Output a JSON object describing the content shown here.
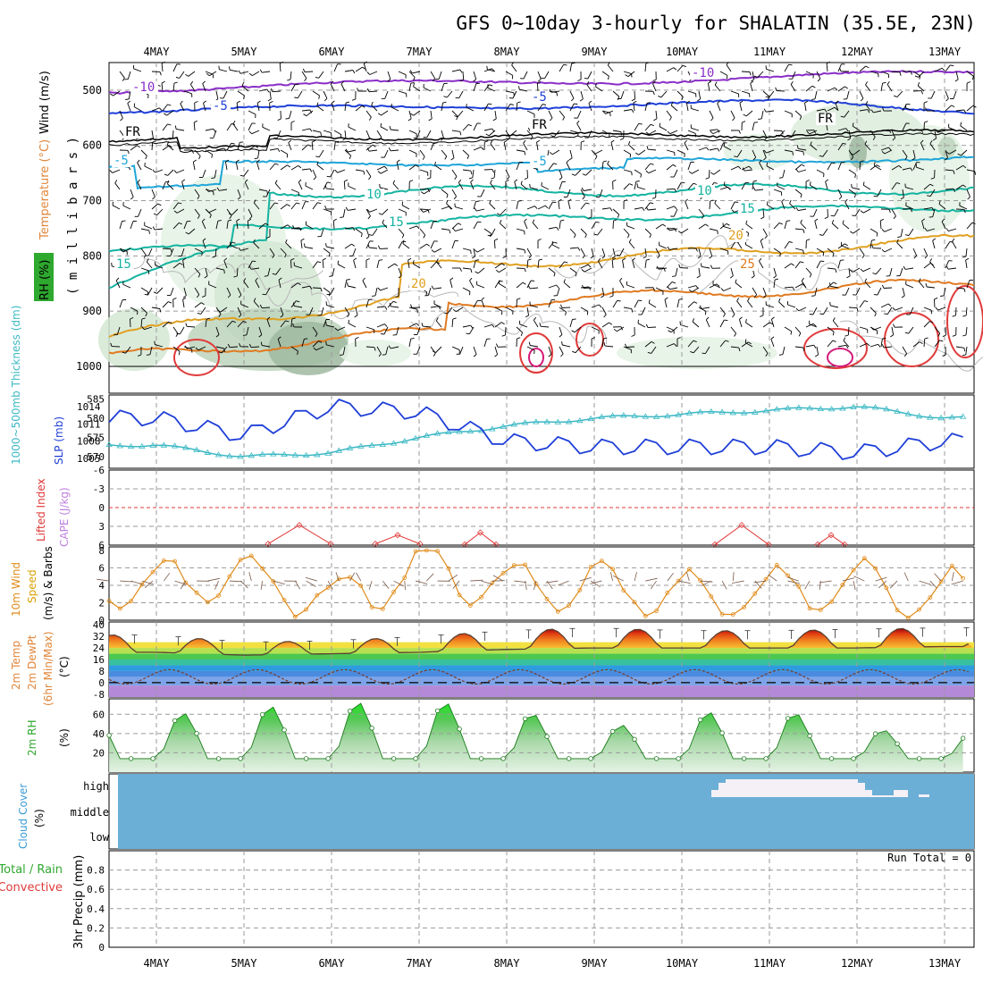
{
  "title": "GFS 0~10day 3-hourly for SHALATIN (35.5E, 23N)",
  "dates": [
    "4MAY",
    "5MAY",
    "6MAY",
    "7MAY",
    "8MAY",
    "9MAY",
    "10MAY",
    "11MAY",
    "12MAY",
    "13MAY"
  ],
  "colors": {
    "temperature_label": "#e0863a",
    "rh_label": "#2ea82e",
    "wind_label": "#000000",
    "thickness": "#3bb8c4",
    "slp": "#1f3fd8",
    "lifted_index": "#e03a3a",
    "cape": "#c080e0",
    "wind10": "#e08b1a",
    "speed": "#d8a000",
    "temp2m": "#e0863a",
    "dewpt": "#2ea82e",
    "rh2m": "#2ea82e",
    "cloud": "#3b9ad4",
    "cloud_fill": "#6baed6",
    "precip_total": "#2ea82e",
    "precip_conv": "#e03a3a"
  },
  "panel1": {
    "ylabel_rh": "RH (%)",
    "ylabel_temp": "Temperature (°C)",
    "ylabel_wind": "Wind (m/s)",
    "ylabel_mb": "( m i l l i b a r s )",
    "y_ticks": [
      "500",
      "600",
      "700",
      "800",
      "900",
      "1000"
    ],
    "contour_labels": [
      "-10",
      "-10",
      "-5",
      "-5",
      "FR",
      "FR",
      "FR",
      "-5",
      "-5",
      "10",
      "10",
      "15",
      "15",
      "15",
      "20",
      "20",
      "25"
    ]
  },
  "panel2": {
    "ylabel_thick": "1000~500mb Thickness (dm)",
    "ylabel_slp": "SLP (mb)",
    "left_ticks": [
      "585",
      "580",
      "575",
      "570"
    ],
    "right_ticks": [
      "1014",
      "1011",
      "1008",
      "1005"
    ]
  },
  "panel3": {
    "ylabel_li": "Lifted Index",
    "ylabel_cape": "CAPE (J/kg)",
    "ticks": [
      "-6",
      "-3",
      "0",
      "3",
      "6"
    ]
  },
  "panel4": {
    "ylabel_wind": "10m Wind",
    "ylabel_speed": "Speed",
    "ylabel_barbs": "(m/s) & Barbs",
    "ticks": [
      "8",
      "6",
      "4",
      "2",
      "0"
    ]
  },
  "panel5": {
    "ylabel_temp": "2m Temp",
    "ylabel_dewpt": "2m DewPt",
    "ylabel_minmax": "(6hr Min/Max)",
    "ylabel_unit": "(°C)",
    "ticks": [
      "40",
      "32",
      "24",
      "16",
      "8",
      "0",
      "-8"
    ]
  },
  "panel6": {
    "ylabel_rh": "2m RH",
    "ylabel_unit": "(%)",
    "ticks": [
      "60",
      "40",
      "20"
    ]
  },
  "panel7": {
    "ylabel_cloud": "Cloud Cover",
    "ylabel_unit": "(%)",
    "levels": [
      "high",
      "middle",
      "low"
    ]
  },
  "panel8": {
    "ylabel_total": "Total / Rain",
    "ylabel_conv": "Convective",
    "ylabel_precip": "3hr Precip (mm)",
    "ticks": [
      "0.8",
      "0.6",
      "0.4",
      "0.2",
      "0"
    ],
    "run_total": "Run Total = 0"
  },
  "chart_data": {
    "type": "line",
    "title": "GFS 0~10day 3-hourly for SHALATIN (35.5E, 23N)",
    "x": [
      "4MAY",
      "5MAY",
      "6MAY",
      "7MAY",
      "8MAY",
      "9MAY",
      "10MAY",
      "11MAY",
      "12MAY",
      "13MAY"
    ],
    "series": [
      {
        "name": "1000~500mb Thickness (dm)",
        "values": [
          573,
          570,
          571,
          575,
          578,
          580,
          581,
          582,
          583,
          580
        ]
      },
      {
        "name": "SLP (mb)",
        "values": [
          1012,
          1009,
          1014,
          1013,
          1008,
          1007,
          1007,
          1007,
          1006,
          1008
        ]
      },
      {
        "name": "10m Wind Speed (m/s)",
        "values": [
          4,
          5,
          2,
          6,
          4,
          4,
          3,
          3,
          4,
          3
        ]
      },
      {
        "name": "2m Temp max (°C)",
        "values": [
          33,
          28,
          29,
          32,
          36,
          38,
          36,
          36,
          37,
          38
        ]
      },
      {
        "name": "2m Temp min (°C)",
        "values": [
          21,
          19,
          20,
          21,
          23,
          24,
          24,
          24,
          24,
          25
        ]
      },
      {
        "name": "2m RH (%)",
        "values": [
          55,
          63,
          68,
          70,
          64,
          40,
          56,
          64,
          42,
          35
        ]
      },
      {
        "name": "3hr Precip (mm)",
        "values": [
          0,
          0,
          0,
          0,
          0,
          0,
          0,
          0,
          0,
          0
        ]
      }
    ],
    "ylim_thickness": [
      567,
      586
    ],
    "ylim_slp": [
      1004,
      1016
    ],
    "ylim_rh": [
      0,
      70
    ],
    "ylim_precip": [
      0,
      1
    ]
  }
}
